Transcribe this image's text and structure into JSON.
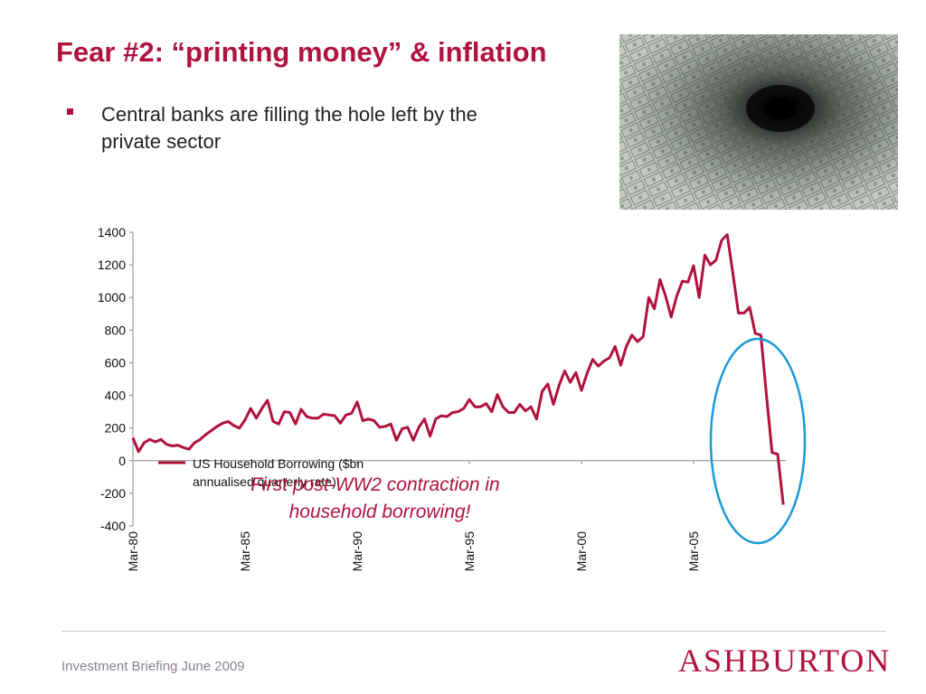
{
  "slide": {
    "title": "Fear #2: “printing money” & inflation",
    "bullet": "Central banks are filling the hole left by the private sector",
    "footer": "Investment Briefing June 2009",
    "logo": "ASHBURTON",
    "annotation_line1": "First post-WW2 contraction in",
    "annotation_line2": "household borrowing!"
  },
  "colors": {
    "accent": "#b0123e",
    "circle": "#1a9ad6",
    "footer_text": "#8a7f95"
  },
  "chart_data": {
    "type": "line",
    "legend_line1": "US Household Borrowing ($bn",
    "legend_line2": "annualised quarterly rate)",
    "legend_position": "top-left",
    "ylim": [
      -400,
      1400
    ],
    "yticks": [
      1400,
      1200,
      1000,
      800,
      600,
      400,
      200,
      0,
      -200,
      -400
    ],
    "xtick_labels": [
      "Mar-80",
      "Mar-85",
      "Mar-90",
      "Mar-95",
      "Mar-00",
      "Mar-05"
    ],
    "grid": false,
    "series": [
      {
        "name": "US Household Borrowing ($bn annualised quarterly rate)",
        "x_start": "Mar-80",
        "frequency": "quarterly",
        "values": [
          140,
          55,
          110,
          130,
          115,
          130,
          100,
          90,
          95,
          80,
          70,
          110,
          130,
          160,
          185,
          210,
          230,
          240,
          215,
          200,
          250,
          320,
          260,
          320,
          370,
          240,
          225,
          300,
          295,
          225,
          315,
          270,
          260,
          260,
          285,
          280,
          275,
          230,
          280,
          290,
          360,
          245,
          255,
          245,
          205,
          210,
          225,
          125,
          195,
          205,
          125,
          205,
          255,
          150,
          255,
          275,
          270,
          295,
          300,
          320,
          375,
          330,
          330,
          350,
          300,
          405,
          330,
          295,
          295,
          345,
          305,
          330,
          255,
          425,
          470,
          345,
          460,
          550,
          480,
          540,
          430,
          535,
          620,
          580,
          610,
          630,
          700,
          585,
          700,
          770,
          730,
          760,
          1000,
          930,
          1110,
          1010,
          880,
          1010,
          1100,
          1095,
          1195,
          1000,
          1260,
          1200,
          1230,
          1350,
          1385,
          1150,
          905,
          905,
          940,
          780,
          770,
          400,
          50,
          40,
          -270
        ]
      }
    ]
  }
}
